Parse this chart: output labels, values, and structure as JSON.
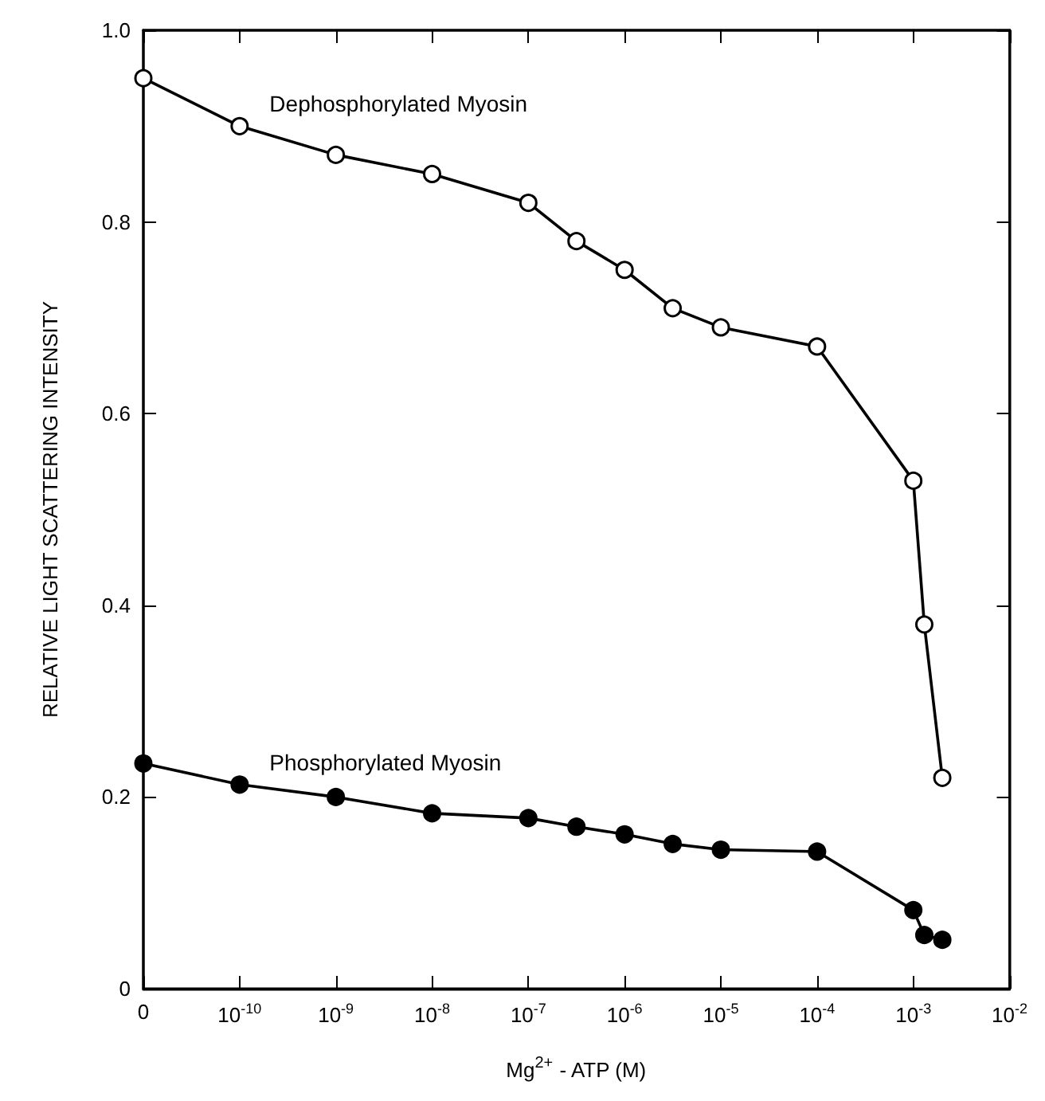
{
  "chart_data": {
    "type": "line",
    "xlabel": "Mg$^{2+}$ - ATP (M)",
    "ylabel": "RELATIVE LIGHT SCATTERING INTENSITY",
    "log": "x",
    "xlim": [
      1e-11,
      0.01
    ],
    "xticks": [
      {
        "value": 1e-11,
        "label": "0"
      },
      {
        "value": 1e-10,
        "label": "10$^{-10}$"
      },
      {
        "value": 1e-09,
        "label": "10$^{-9}$"
      },
      {
        "value": 1e-08,
        "label": "10$^{-8}$"
      },
      {
        "value": 1e-07,
        "label": "10$^{-7}$"
      },
      {
        "value": 1e-06,
        "label": "10$^{-6}$"
      },
      {
        "value": 1e-05,
        "label": "10$^{-5}$"
      },
      {
        "value": 0.0001,
        "label": "10$^{-4}$"
      },
      {
        "value": 0.001,
        "label": "10$^{-3}$"
      },
      {
        "value": 0.01,
        "label": "10$^{-2}$"
      }
    ],
    "ylim": [
      0,
      1
    ],
    "yticks": [
      0,
      0.2,
      0.4,
      0.6,
      0.8,
      {
        "value": 1,
        "label": "1.0"
      }
    ],
    "grid": false,
    "legend": false,
    "marker": "circle",
    "line_style": "solid",
    "series": [
      {
        "name": "Dephosphorylated Myosin",
        "color": "#ffffff",
        "x": [
          1e-11,
          1e-10,
          1e-09,
          1e-08,
          1e-07,
          3.16e-07,
          1e-06,
          3.16e-06,
          1e-05,
          0.0001,
          0.001,
          0.0013,
          0.002
        ],
        "values": [
          0.95,
          0.9,
          0.87,
          0.85,
          0.82,
          0.78,
          0.75,
          0.71,
          0.69,
          0.67,
          0.53,
          0.38,
          0.22
        ]
      },
      {
        "name": "Phosphorylated Myosin",
        "color": "#000000",
        "x": [
          1e-11,
          1e-10,
          1e-09,
          1e-08,
          1e-07,
          3.16e-07,
          1e-06,
          3.16e-06,
          1e-05,
          0.0001,
          0.001,
          0.0013,
          0.002
        ],
        "values": [
          0.235,
          0.213,
          0.2,
          0.183,
          0.178,
          0.169,
          0.161,
          0.151,
          0.145,
          0.143,
          0.082,
          0.056,
          0.051
        ]
      }
    ]
  }
}
